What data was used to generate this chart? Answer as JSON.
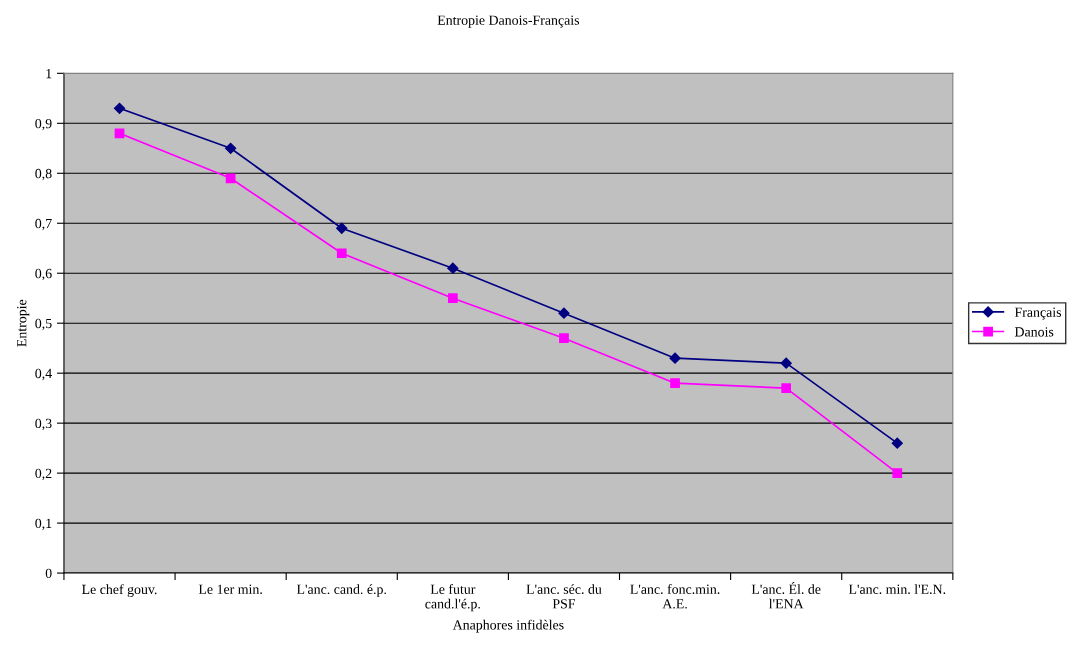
{
  "chart_data": {
    "type": "line",
    "title": "Entropie Danois-Français",
    "xlabel": "Anaphores infidèles",
    "ylabel": "Entropie",
    "categories": [
      "Le chef gouv.",
      "Le 1er min.",
      "L'anc. cand. é.p.",
      "Le futur\ncand.l'é.p.",
      "L'anc. séc. du\nPSF",
      "L'anc. fonc.min.\nA.E.",
      "L'anc. Él. de\nl'ENA",
      "L'anc. min. l'E.N."
    ],
    "series": [
      {
        "name": "Français",
        "color": "#000080",
        "marker": "diamond",
        "values": [
          0.93,
          0.85,
          0.69,
          0.61,
          0.52,
          0.43,
          0.42,
          0.26
        ]
      },
      {
        "name": "Danois",
        "color": "#ff00ff",
        "marker": "square",
        "values": [
          0.88,
          0.79,
          0.64,
          0.55,
          0.47,
          0.38,
          0.37,
          0.2
        ]
      }
    ],
    "ylim": [
      0,
      1
    ],
    "yticks": [
      0,
      {
        "value": 0.1,
        "label": "0,1"
      },
      {
        "value": 0.2,
        "label": "0,2"
      },
      {
        "value": 0.3,
        "label": "0,3"
      },
      {
        "value": 0.4,
        "label": "0,4"
      },
      {
        "value": 0.5,
        "label": "0,5"
      },
      {
        "value": 0.6,
        "label": "0,6"
      },
      {
        "value": 0.7,
        "label": "0,7"
      },
      {
        "value": 0.8,
        "label": "0,8"
      },
      {
        "value": 0.9,
        "label": "0,9"
      },
      1
    ],
    "grid": "y",
    "legend": "right",
    "line_style": "solid"
  }
}
